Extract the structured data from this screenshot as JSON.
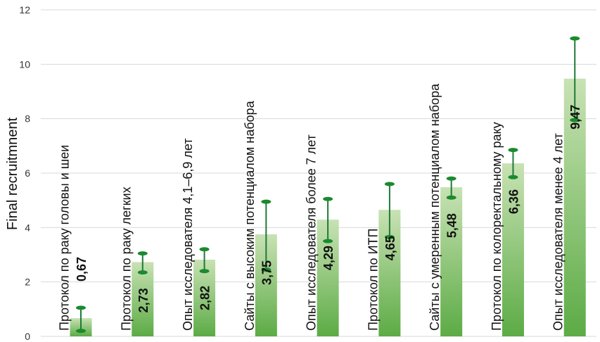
{
  "chart_data": {
    "type": "bar",
    "title": "",
    "xlabel": "",
    "ylabel": "Final recruitmnent",
    "ylim": [
      0,
      12
    ],
    "yticks": [
      0,
      2,
      4,
      6,
      8,
      10,
      12
    ],
    "grid": "horizontal",
    "legend": "none",
    "categories": [
      "Протокол по раку головы и шеи",
      "Протокол по раку легких",
      "Опыт исследователя 4,1–6,9 лет",
      "Сайты с высоким потенциалом набора",
      "Опыт исследователя более 7 лет",
      "Протокол по ИТП",
      "Сайты с умеренным потенциалом набора",
      "Протокол по колоректальному раку",
      "Опыт исследователя менее 4 лет"
    ],
    "values": [
      0.67,
      2.73,
      2.82,
      3.75,
      4.29,
      4.65,
      5.48,
      6.36,
      9.47
    ],
    "value_labels": [
      "0,67",
      "2,73",
      "2,82",
      "3,75",
      "4,29",
      "4,65",
      "5,48",
      "6,36",
      "9,47"
    ],
    "error_low": [
      0.2,
      2.35,
      2.4,
      2.45,
      3.5,
      3.65,
      5.1,
      5.85,
      7.95
    ],
    "error_high": [
      1.05,
      3.05,
      3.2,
      4.95,
      5.05,
      5.6,
      5.8,
      6.85,
      10.95
    ],
    "colors": {
      "bar_top": "#c8e2b4",
      "bar_bottom": "#5cab45",
      "error_line": "#1f7a3a",
      "error_cap": "#1a8a2e",
      "grid": "#d9d9d9"
    }
  }
}
